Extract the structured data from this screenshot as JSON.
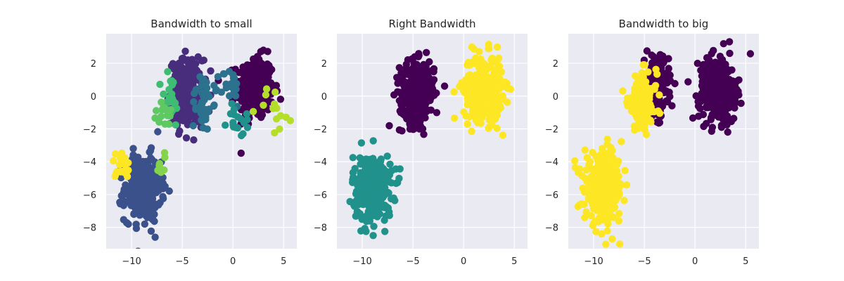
{
  "chart_data": [
    {
      "type": "scatter",
      "title": "Bandwidth to small",
      "xlim": [
        -12.5,
        6.3
      ],
      "ylim": [
        -9.3,
        3.8
      ],
      "xticks": [
        -10,
        -5,
        0,
        5
      ],
      "yticks": [
        -8,
        -6,
        -4,
        -2,
        0,
        2
      ],
      "grid": true,
      "clusters": [
        {
          "cx": 2.2,
          "cy": 0.5,
          "sx": 0.9,
          "sy": 0.95,
          "n": 320,
          "color": "#440154"
        },
        {
          "cx": -4.6,
          "cy": 0.2,
          "sx": 0.8,
          "sy": 1.0,
          "n": 280,
          "color": "#472d7b"
        },
        {
          "cx": -8.9,
          "cy": -5.6,
          "sx": 0.9,
          "sy": 1.0,
          "n": 330,
          "color": "#3b518b"
        },
        {
          "cx": -3.0,
          "cy": -0.4,
          "sx": 0.5,
          "sy": 0.9,
          "n": 40,
          "color": "#2c718e"
        },
        {
          "cx": -0.3,
          "cy": 0.5,
          "sx": 0.5,
          "sy": 0.6,
          "n": 30,
          "color": "#2c718e"
        },
        {
          "cx": 0.6,
          "cy": -1.5,
          "sx": 0.6,
          "sy": 0.5,
          "n": 18,
          "color": "#21918c"
        },
        {
          "cx": -6.2,
          "cy": -0.3,
          "sx": 0.5,
          "sy": 0.9,
          "n": 25,
          "color": "#3fbc73"
        },
        {
          "cx": -6.7,
          "cy": -1.2,
          "sx": 0.6,
          "sy": 0.4,
          "n": 14,
          "color": "#5ec962"
        },
        {
          "cx": -7.0,
          "cy": -4.0,
          "sx": 0.5,
          "sy": 0.4,
          "n": 8,
          "color": "#84d44b"
        },
        {
          "cx": 4.2,
          "cy": -0.8,
          "sx": 0.9,
          "sy": 0.8,
          "n": 14,
          "color": "#b5de2b"
        },
        {
          "cx": -11.0,
          "cy": -4.3,
          "sx": 0.5,
          "sy": 0.5,
          "n": 20,
          "color": "#fde725"
        }
      ]
    },
    {
      "type": "scatter",
      "title": "Right Bandwidth",
      "xlim": [
        -12.5,
        6.3
      ],
      "ylim": [
        -9.3,
        3.8
      ],
      "xticks": [
        -10,
        -5,
        0,
        5
      ],
      "yticks": [
        -8,
        -6,
        -4,
        -2,
        0,
        2
      ],
      "grid": true,
      "clusters": [
        {
          "cx": -4.6,
          "cy": 0.2,
          "sx": 0.85,
          "sy": 0.95,
          "n": 330,
          "color": "#440154"
        },
        {
          "cx": 1.9,
          "cy": 0.5,
          "sx": 0.95,
          "sy": 1.0,
          "n": 330,
          "color": "#fde725"
        },
        {
          "cx": -9.0,
          "cy": -5.6,
          "sx": 0.95,
          "sy": 1.0,
          "n": 340,
          "color": "#21918c"
        }
      ]
    },
    {
      "type": "scatter",
      "title": "Bandwidth to big",
      "xlim": [
        -12.5,
        6.3
      ],
      "ylim": [
        -9.3,
        3.8
      ],
      "xticks": [
        -10,
        -5,
        0,
        5
      ],
      "yticks": [
        -8,
        -6,
        -4,
        -2,
        0,
        2
      ],
      "grid": true,
      "clusters": [
        {
          "cx": 2.2,
          "cy": 0.4,
          "sx": 0.9,
          "sy": 1.0,
          "n": 330,
          "color": "#440154"
        },
        {
          "cx": -3.8,
          "cy": 0.6,
          "sx": 0.6,
          "sy": 0.9,
          "n": 200,
          "color": "#440154"
        },
        {
          "cx": -5.2,
          "cy": -0.4,
          "sx": 0.7,
          "sy": 0.9,
          "n": 160,
          "color": "#fde725"
        },
        {
          "cx": -9.0,
          "cy": -5.6,
          "sx": 0.95,
          "sy": 1.0,
          "n": 340,
          "color": "#fde725"
        }
      ]
    }
  ]
}
